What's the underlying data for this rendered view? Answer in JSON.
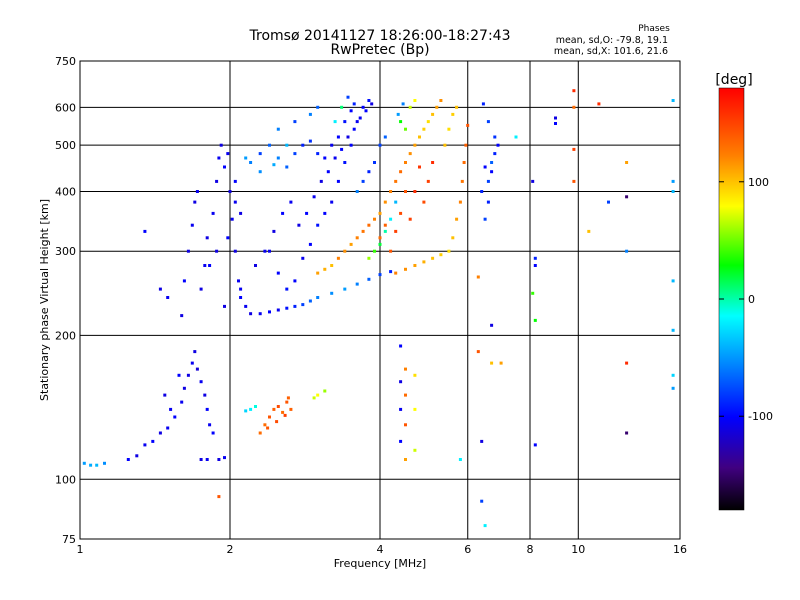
{
  "chart_data": {
    "type": "scatter",
    "title": "Tromsø 20141127 18:26:00-18:27:43",
    "subtitle": "RwPretec (Bp)",
    "xlabel": "Frequency [MHz]",
    "ylabel": "Stationary phase Virtual Height [km]",
    "x_scale": "log",
    "y_scale": "log",
    "xlim": [
      1,
      16
    ],
    "ylim": [
      75,
      750
    ],
    "x_ticks": [
      1,
      2,
      4,
      6,
      8,
      10,
      16
    ],
    "y_ticks": [
      75,
      100,
      200,
      300,
      400,
      500,
      600,
      750
    ],
    "grid": true,
    "stats": {
      "heading": "Phases",
      "line_o": "mean, sd,O: -79.8, 19.1",
      "line_x": "mean, sd,X: 101.6, 21.6"
    },
    "colorbar": {
      "label": "[deg]",
      "range": [
        -180,
        180
      ],
      "ticks": [
        "100",
        "0",
        "-100"
      ],
      "tick_values": [
        100,
        0,
        -100
      ]
    },
    "points": [
      [
        1.02,
        108,
        -50
      ],
      [
        1.05,
        107,
        -45
      ],
      [
        1.08,
        107,
        -40
      ],
      [
        1.12,
        108,
        -55
      ],
      [
        1.25,
        110,
        -100
      ],
      [
        1.3,
        112,
        -110
      ],
      [
        1.35,
        118,
        -105
      ],
      [
        1.4,
        120,
        -100
      ],
      [
        1.45,
        125,
        -110
      ],
      [
        1.5,
        128,
        -105
      ],
      [
        1.55,
        135,
        -100
      ],
      [
        1.6,
        145,
        -105
      ],
      [
        1.62,
        155,
        -110
      ],
      [
        1.65,
        165,
        -110
      ],
      [
        1.68,
        175,
        -105
      ],
      [
        1.7,
        185,
        -110
      ],
      [
        1.72,
        170,
        -115
      ],
      [
        1.75,
        160,
        -105
      ],
      [
        1.78,
        150,
        -110
      ],
      [
        1.8,
        140,
        -100
      ],
      [
        1.82,
        130,
        -105
      ],
      [
        1.85,
        125,
        -100
      ],
      [
        1.75,
        110,
        -110
      ],
      [
        1.8,
        110,
        -105
      ],
      [
        1.9,
        110,
        -110
      ],
      [
        1.95,
        111,
        -105
      ],
      [
        1.48,
        150,
        -110
      ],
      [
        1.52,
        140,
        -105
      ],
      [
        1.58,
        165,
        -100
      ],
      [
        1.6,
        220,
        -110
      ],
      [
        1.62,
        260,
        -100
      ],
      [
        1.65,
        300,
        -110
      ],
      [
        1.68,
        340,
        -105
      ],
      [
        1.7,
        380,
        -110
      ],
      [
        1.72,
        400,
        -105
      ],
      [
        1.75,
        250,
        -110
      ],
      [
        1.78,
        280,
        -105
      ],
      [
        1.8,
        320,
        -110
      ],
      [
        1.85,
        360,
        -105
      ],
      [
        1.88,
        420,
        -110
      ],
      [
        1.9,
        470,
        -105
      ],
      [
        1.92,
        500,
        -110
      ],
      [
        1.95,
        450,
        -100
      ],
      [
        1.98,
        480,
        -105
      ],
      [
        2.0,
        400,
        -110
      ],
      [
        2.02,
        350,
        -105
      ],
      [
        2.05,
        300,
        -110
      ],
      [
        2.08,
        260,
        -105
      ],
      [
        2.1,
        240,
        -100
      ],
      [
        2.15,
        230,
        -105
      ],
      [
        2.2,
        222,
        -110
      ],
      [
        2.3,
        222,
        -105
      ],
      [
        2.4,
        224,
        -100
      ],
      [
        2.5,
        226,
        -105
      ],
      [
        2.6,
        228,
        -95
      ],
      [
        2.7,
        230,
        -90
      ],
      [
        2.8,
        232,
        -80
      ],
      [
        2.9,
        236,
        -70
      ],
      [
        3.0,
        240,
        -60
      ],
      [
        3.2,
        245,
        -55
      ],
      [
        3.4,
        250,
        -50
      ],
      [
        3.6,
        256,
        -60
      ],
      [
        3.8,
        262,
        -70
      ],
      [
        4.0,
        268,
        -80
      ],
      [
        4.2,
        272,
        -90
      ],
      [
        1.95,
        230,
        -110
      ],
      [
        2.1,
        250,
        -105
      ],
      [
        2.25,
        280,
        -110
      ],
      [
        2.4,
        300,
        -105
      ],
      [
        2.5,
        270,
        -100
      ],
      [
        2.6,
        250,
        -95
      ],
      [
        2.7,
        260,
        -100
      ],
      [
        2.8,
        290,
        -105
      ],
      [
        2.9,
        310,
        -100
      ],
      [
        3.0,
        340,
        -95
      ],
      [
        3.1,
        360,
        -100
      ],
      [
        3.2,
        380,
        -105
      ],
      [
        3.3,
        420,
        -100
      ],
      [
        3.4,
        460,
        -95
      ],
      [
        3.5,
        500,
        -100
      ],
      [
        3.6,
        560,
        -105
      ],
      [
        3.7,
        600,
        -100
      ],
      [
        3.8,
        620,
        -95
      ],
      [
        2.3,
        480,
        -80
      ],
      [
        2.4,
        500,
        -70
      ],
      [
        2.5,
        470,
        -60
      ],
      [
        2.6,
        450,
        -70
      ],
      [
        2.7,
        480,
        -80
      ],
      [
        2.8,
        500,
        -90
      ],
      [
        2.2,
        460,
        -60
      ],
      [
        2.15,
        470,
        -50
      ],
      [
        2.3,
        440,
        -55
      ],
      [
        2.45,
        455,
        -45
      ],
      [
        2.6,
        500,
        -40
      ],
      [
        2.9,
        510,
        -85
      ],
      [
        3.0,
        480,
        -90
      ],
      [
        3.1,
        470,
        -100
      ],
      [
        3.2,
        500,
        -105
      ],
      [
        3.3,
        520,
        -100
      ],
      [
        3.4,
        560,
        -95
      ],
      [
        3.5,
        590,
        -100
      ],
      [
        3.0,
        270,
        110
      ],
      [
        3.1,
        275,
        105
      ],
      [
        3.2,
        280,
        100
      ],
      [
        3.3,
        290,
        120
      ],
      [
        3.4,
        300,
        115
      ],
      [
        3.5,
        310,
        110
      ],
      [
        3.6,
        320,
        120
      ],
      [
        3.7,
        330,
        125
      ],
      [
        3.8,
        340,
        130
      ],
      [
        3.9,
        350,
        120
      ],
      [
        4.0,
        360,
        110
      ],
      [
        4.1,
        380,
        115
      ],
      [
        4.2,
        400,
        120
      ],
      [
        4.3,
        420,
        125
      ],
      [
        4.4,
        440,
        130
      ],
      [
        4.5,
        460,
        120
      ],
      [
        4.6,
        480,
        115
      ],
      [
        4.7,
        500,
        110
      ],
      [
        4.8,
        520,
        100
      ],
      [
        4.9,
        540,
        95
      ],
      [
        5.0,
        560,
        90
      ],
      [
        5.1,
        580,
        100
      ],
      [
        5.2,
        600,
        110
      ],
      [
        5.3,
        620,
        115
      ],
      [
        4.3,
        270,
        120
      ],
      [
        4.5,
        275,
        115
      ],
      [
        4.7,
        280,
        110
      ],
      [
        4.9,
        285,
        105
      ],
      [
        5.1,
        290,
        100
      ],
      [
        5.3,
        295,
        95
      ],
      [
        5.5,
        300,
        90
      ],
      [
        5.6,
        320,
        100
      ],
      [
        5.7,
        350,
        110
      ],
      [
        5.8,
        380,
        120
      ],
      [
        5.85,
        420,
        125
      ],
      [
        5.9,
        460,
        130
      ],
      [
        5.95,
        500,
        135
      ],
      [
        6.0,
        550,
        140
      ],
      [
        5.7,
        600,
        100
      ],
      [
        5.6,
        580,
        95
      ],
      [
        5.5,
        540,
        90
      ],
      [
        5.4,
        500,
        100
      ],
      [
        4.6,
        350,
        150
      ],
      [
        4.7,
        400,
        160
      ],
      [
        4.8,
        450,
        155
      ],
      [
        4.9,
        380,
        145
      ],
      [
        5.0,
        420,
        150
      ],
      [
        5.1,
        460,
        160
      ],
      [
        4.2,
        300,
        140
      ],
      [
        4.3,
        330,
        150
      ],
      [
        4.4,
        360,
        145
      ],
      [
        4.5,
        400,
        140
      ],
      [
        4.0,
        320,
        130
      ],
      [
        4.1,
        340,
        135
      ],
      [
        3.8,
        290,
        60
      ],
      [
        3.9,
        300,
        40
      ],
      [
        4.0,
        310,
        20
      ],
      [
        4.1,
        330,
        0
      ],
      [
        4.2,
        350,
        -20
      ],
      [
        4.3,
        380,
        -40
      ],
      [
        3.6,
        400,
        -60
      ],
      [
        3.7,
        420,
        -80
      ],
      [
        3.8,
        440,
        -90
      ],
      [
        3.9,
        460,
        -85
      ],
      [
        4.0,
        500,
        -80
      ],
      [
        4.1,
        520,
        -70
      ],
      [
        4.4,
        560,
        30
      ],
      [
        4.5,
        540,
        50
      ],
      [
        4.6,
        600,
        70
      ],
      [
        4.7,
        620,
        80
      ],
      [
        4.35,
        580,
        -50
      ],
      [
        4.45,
        610,
        -60
      ],
      [
        6.4,
        400,
        -90
      ],
      [
        6.5,
        450,
        -100
      ],
      [
        6.6,
        420,
        -80
      ],
      [
        6.7,
        460,
        -70
      ],
      [
        6.8,
        480,
        -90
      ],
      [
        6.9,
        500,
        -100
      ],
      [
        6.5,
        350,
        -80
      ],
      [
        6.6,
        380,
        -90
      ],
      [
        6.7,
        440,
        -100
      ],
      [
        6.8,
        520,
        -85
      ],
      [
        6.45,
        610,
        -90
      ],
      [
        6.6,
        560,
        -80
      ],
      [
        2.35,
        130,
        130
      ],
      [
        2.4,
        135,
        140
      ],
      [
        2.45,
        140,
        135
      ],
      [
        2.5,
        142,
        145
      ],
      [
        2.55,
        138,
        130
      ],
      [
        2.6,
        145,
        140
      ],
      [
        2.65,
        140,
        135
      ],
      [
        2.3,
        125,
        130
      ],
      [
        2.38,
        128,
        140
      ],
      [
        2.48,
        132,
        145
      ],
      [
        2.58,
        136,
        150
      ],
      [
        2.62,
        148,
        135
      ],
      [
        2.2,
        140,
        -20
      ],
      [
        2.25,
        142,
        -10
      ],
      [
        2.15,
        139,
        -30
      ],
      [
        3.0,
        150,
        80
      ],
      [
        3.1,
        153,
        60
      ],
      [
        2.95,
        148,
        70
      ],
      [
        4.5,
        170,
        120
      ],
      [
        4.5,
        150,
        130
      ],
      [
        4.5,
        130,
        140
      ],
      [
        4.5,
        110,
        110
      ],
      [
        4.4,
        190,
        -100
      ],
      [
        4.4,
        160,
        -110
      ],
      [
        4.4,
        140,
        -105
      ],
      [
        4.4,
        120,
        -100
      ],
      [
        4.7,
        165,
        90
      ],
      [
        4.7,
        140,
        80
      ],
      [
        4.7,
        115,
        70
      ],
      [
        6.3,
        265,
        120
      ],
      [
        6.3,
        185,
        140
      ],
      [
        6.4,
        120,
        -110
      ],
      [
        6.4,
        90,
        -80
      ],
      [
        6.5,
        80,
        -20
      ],
      [
        6.7,
        210,
        -110
      ],
      [
        6.7,
        175,
        100
      ],
      [
        7.0,
        175,
        110
      ],
      [
        5.8,
        110,
        -20
      ],
      [
        8.1,
        420,
        -110
      ],
      [
        8.2,
        290,
        -90
      ],
      [
        8.2,
        280,
        -100
      ],
      [
        8.1,
        245,
        40
      ],
      [
        8.2,
        215,
        30
      ],
      [
        8.2,
        118,
        -100
      ],
      [
        9.0,
        570,
        -110
      ],
      [
        9.0,
        555,
        -100
      ],
      [
        9.8,
        650,
        160
      ],
      [
        9.8,
        600,
        130
      ],
      [
        9.8,
        490,
        150
      ],
      [
        9.8,
        420,
        140
      ],
      [
        10.5,
        330,
        100
      ],
      [
        11.0,
        610,
        160
      ],
      [
        12.5,
        460,
        110
      ],
      [
        12.5,
        390,
        -150
      ],
      [
        12.5,
        300,
        -60
      ],
      [
        12.5,
        175,
        160
      ],
      [
        12.5,
        125,
        -150
      ],
      [
        11.5,
        380,
        -80
      ],
      [
        15.5,
        620,
        -40
      ],
      [
        15.5,
        420,
        -50
      ],
      [
        15.5,
        400,
        -40
      ],
      [
        15.5,
        260,
        -40
      ],
      [
        15.5,
        205,
        -40
      ],
      [
        15.5,
        165,
        -30
      ],
      [
        15.5,
        155,
        -50
      ],
      [
        7.5,
        520,
        -20
      ],
      [
        1.9,
        92,
        140
      ],
      [
        1.35,
        330,
        -100
      ],
      [
        1.45,
        250,
        -110
      ],
      [
        1.5,
        240,
        -105
      ],
      [
        2.05,
        420,
        -100
      ],
      [
        2.05,
        380,
        -105
      ],
      [
        2.1,
        360,
        -110
      ],
      [
        1.98,
        320,
        -100
      ],
      [
        1.88,
        300,
        -110
      ],
      [
        1.82,
        280,
        -100
      ],
      [
        2.35,
        300,
        -105
      ],
      [
        2.45,
        330,
        -110
      ],
      [
        2.55,
        360,
        -100
      ],
      [
        2.65,
        380,
        -105
      ],
      [
        2.75,
        340,
        -110
      ],
      [
        2.85,
        360,
        -100
      ],
      [
        2.95,
        390,
        -105
      ],
      [
        3.05,
        420,
        -110
      ],
      [
        3.15,
        440,
        -100
      ],
      [
        3.25,
        470,
        -105
      ],
      [
        3.35,
        490,
        -100
      ],
      [
        3.45,
        520,
        -110
      ],
      [
        3.55,
        540,
        -100
      ],
      [
        3.65,
        570,
        -105
      ],
      [
        3.75,
        590,
        -100
      ],
      [
        3.85,
        610,
        -110
      ],
      [
        3.25,
        560,
        -20
      ],
      [
        3.35,
        600,
        10
      ],
      [
        3.45,
        630,
        -80
      ],
      [
        3.55,
        610,
        -90
      ],
      [
        2.9,
        580,
        -60
      ],
      [
        3.0,
        600,
        -70
      ],
      [
        2.7,
        560,
        -80
      ],
      [
        2.5,
        540,
        -60
      ]
    ]
  }
}
